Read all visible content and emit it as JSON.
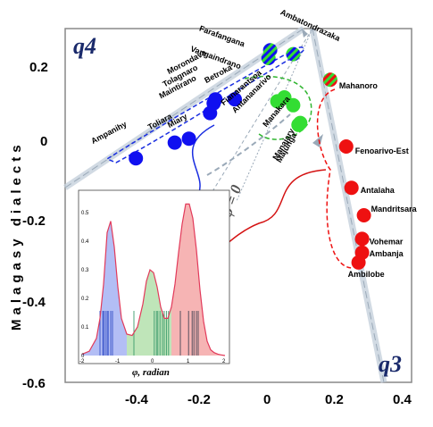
{
  "chart_data": [
    {
      "type": "scatter",
      "ylabel": "Malagasy dialects",
      "xlim": [
        -0.58,
        0.4
      ],
      "ylim": [
        -0.6,
        0.3
      ],
      "x_ticks": [
        "-0.4",
        "-0.2",
        "0",
        "0.2",
        "0.4"
      ],
      "y_ticks": [
        "0.2",
        "0",
        "-0.2",
        "-0.4",
        "-0.6"
      ],
      "quadrant_labels": [
        "q4",
        "q3"
      ],
      "phi_label": "φ = 0",
      "colors": {
        "blue": "#1010f0",
        "green": "#33dd33",
        "red": "#ee1111",
        "q": "#1a2a6b"
      },
      "groups": [
        {
          "color": "blue",
          "points": [
            {
              "label": "Ampanihy",
              "x": -0.38,
              "y": -0.03
            },
            {
              "label": "Toliara",
              "x": -0.27,
              "y": 0.01
            },
            {
              "label": "Miary",
              "x": -0.23,
              "y": 0.02
            },
            {
              "label": "Maintirano",
              "x": -0.17,
              "y": 0.085
            },
            {
              "label": "Tolagnaro",
              "x": -0.16,
              "y": 0.11
            },
            {
              "label": "Morondava",
              "x": -0.155,
              "y": 0.12
            },
            {
              "label": "Betroka",
              "x": -0.1,
              "y": 0.12
            }
          ]
        },
        {
          "color": "green",
          "points": [
            {
              "label": "Fianarantsoa",
              "x": 0.02,
              "y": 0.115
            },
            {
              "label": "Antananarivo",
              "x": 0.04,
              "y": 0.125
            },
            {
              "label": "Manakara",
              "x": 0.065,
              "y": 0.105
            },
            {
              "label": "Manajary",
              "x": 0.08,
              "y": 0.055
            },
            {
              "label": "Majunga",
              "x": 0.085,
              "y": 0.06
            }
          ]
        },
        {
          "color": "blue-green",
          "points": [
            {
              "label": "Farafangana",
              "x": 0.0,
              "y": 0.245
            },
            {
              "label": "Vangaindrano",
              "x": -0.005,
              "y": 0.225
            },
            {
              "label": "Ambatondrazaka",
              "x": 0.065,
              "y": 0.235
            }
          ]
        },
        {
          "color": "red-green",
          "points": [
            {
              "label": "Mahanoro",
              "x": 0.17,
              "y": 0.17
            }
          ]
        },
        {
          "color": "red",
          "points": [
            {
              "label": "Fenoarivo-Est",
              "x": 0.215,
              "y": 0.0
            },
            {
              "label": "Antalaha",
              "x": 0.23,
              "y": -0.105
            },
            {
              "label": "Mandritsara",
              "x": 0.265,
              "y": -0.175
            },
            {
              "label": "Vohemar",
              "x": 0.26,
              "y": -0.235
            },
            {
              "label": "Ambanja",
              "x": 0.26,
              "y": -0.27
            },
            {
              "label": "Ambilobe",
              "x": 0.25,
              "y": -0.295
            }
          ]
        }
      ]
    },
    {
      "type": "area",
      "xlabel": "φ, radian",
      "xlim": [
        -2,
        2
      ],
      "ylim": [
        0,
        0.55
      ],
      "x_ticks": [
        "-2",
        "-1",
        "0",
        "1",
        "2"
      ],
      "y_ticks": [
        "0.5",
        "0.4",
        "0.3",
        "0.2",
        "0.1",
        "0"
      ],
      "x": [
        -2,
        -1.8,
        -1.6,
        -1.5,
        -1.4,
        -1.3,
        -1.2,
        -1.1,
        -1.0,
        -0.9,
        -0.75,
        -0.6,
        -0.45,
        -0.3,
        -0.2,
        -0.1,
        0.0,
        0.1,
        0.2,
        0.3,
        0.4,
        0.5,
        0.6,
        0.7,
        0.8,
        0.9,
        1.0,
        1.1,
        1.2,
        1.3,
        1.4,
        1.5,
        1.6,
        1.7,
        1.8,
        1.9,
        2.0
      ],
      "y": [
        0.005,
        0.015,
        0.06,
        0.13,
        0.25,
        0.43,
        0.47,
        0.38,
        0.24,
        0.13,
        0.075,
        0.07,
        0.1,
        0.18,
        0.26,
        0.3,
        0.29,
        0.24,
        0.17,
        0.13,
        0.13,
        0.17,
        0.25,
        0.36,
        0.46,
        0.53,
        0.53,
        0.48,
        0.37,
        0.23,
        0.12,
        0.05,
        0.02,
        0.01,
        0.005,
        0.002,
        0.0
      ],
      "region_boundaries": [
        -0.75,
        0.5
      ],
      "region_colors": [
        "#9aa8f2",
        "#a9dca2",
        "#f39b9b"
      ],
      "rug_positions": [
        -1.5,
        -1.42,
        -1.4,
        -1.35,
        -1.3,
        -1.27,
        -1.2,
        -1.15,
        -0.55,
        0.02,
        0.08,
        0.12,
        0.18,
        0.25,
        0.3,
        0.36,
        0.42,
        0.75,
        0.98,
        1.08,
        1.13,
        1.2,
        1.25
      ]
    }
  ]
}
